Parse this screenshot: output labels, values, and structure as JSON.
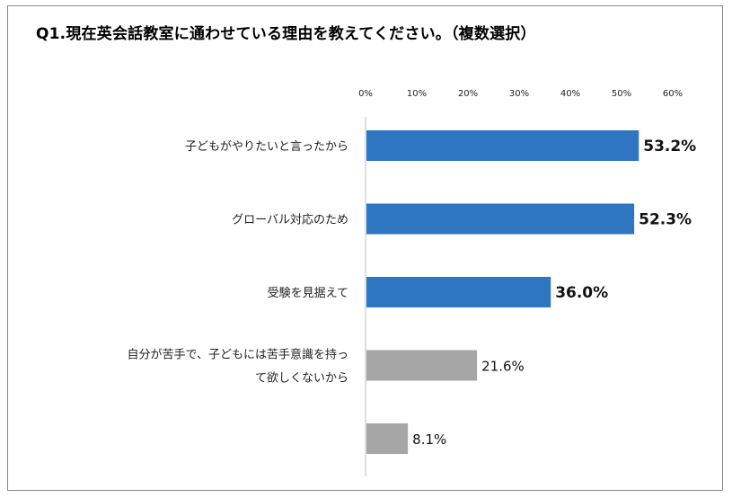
{
  "title": "Q1.現在英会話教室に通わせている理由を教えてください。（複数選択）",
  "chart_data": {
    "type": "bar",
    "orientation": "horizontal",
    "title": "Q1.現在英会話教室に通わせている理由を教えてください。（複数選択）",
    "x_ticks": [
      "0%",
      "10%",
      "20%",
      "30%",
      "40%",
      "50%",
      "60%"
    ],
    "xlim": [
      0,
      60
    ],
    "x_axis_position": "top",
    "grid": false,
    "legend": "none",
    "categories": [
      [
        "子どもがやりたいと言ったから"
      ],
      [
        "グローバル対応のため"
      ],
      [
        "受験を見据えて"
      ],
      [
        "自分が苦手で、子どもには苦手意識を持っ",
        "て欲しくないから"
      ],
      []
    ],
    "values": [
      53.2,
      52.3,
      36.0,
      21.6,
      8.1
    ],
    "value_labels": [
      "53.2%",
      "52.3%",
      "36.0%",
      "21.6%",
      "8.1%"
    ],
    "highlight": [
      true,
      true,
      true,
      false,
      false
    ],
    "colors": {
      "highlight": "#2e75c2",
      "normal": "#a6a6a6",
      "axis": "#bfbfbf"
    }
  }
}
